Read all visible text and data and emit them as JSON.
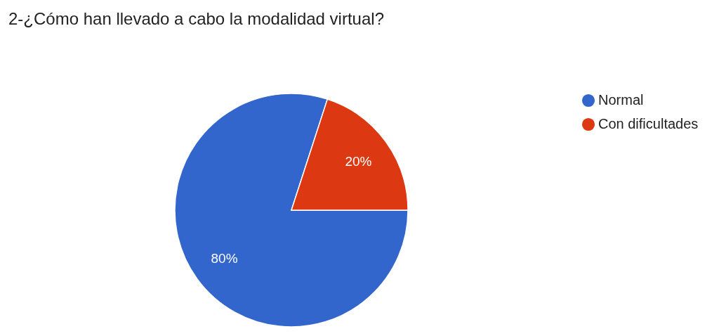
{
  "chart_data": {
    "type": "pie",
    "title": "2-¿Cómo han llevado a cabo la modalidad virtual?",
    "categories": [
      "Normal",
      "Con dificultades"
    ],
    "values": [
      80,
      20
    ],
    "colors": [
      "#3366cc",
      "#dc3912"
    ],
    "value_labels": [
      "80%",
      "20%"
    ],
    "legend": "right"
  }
}
